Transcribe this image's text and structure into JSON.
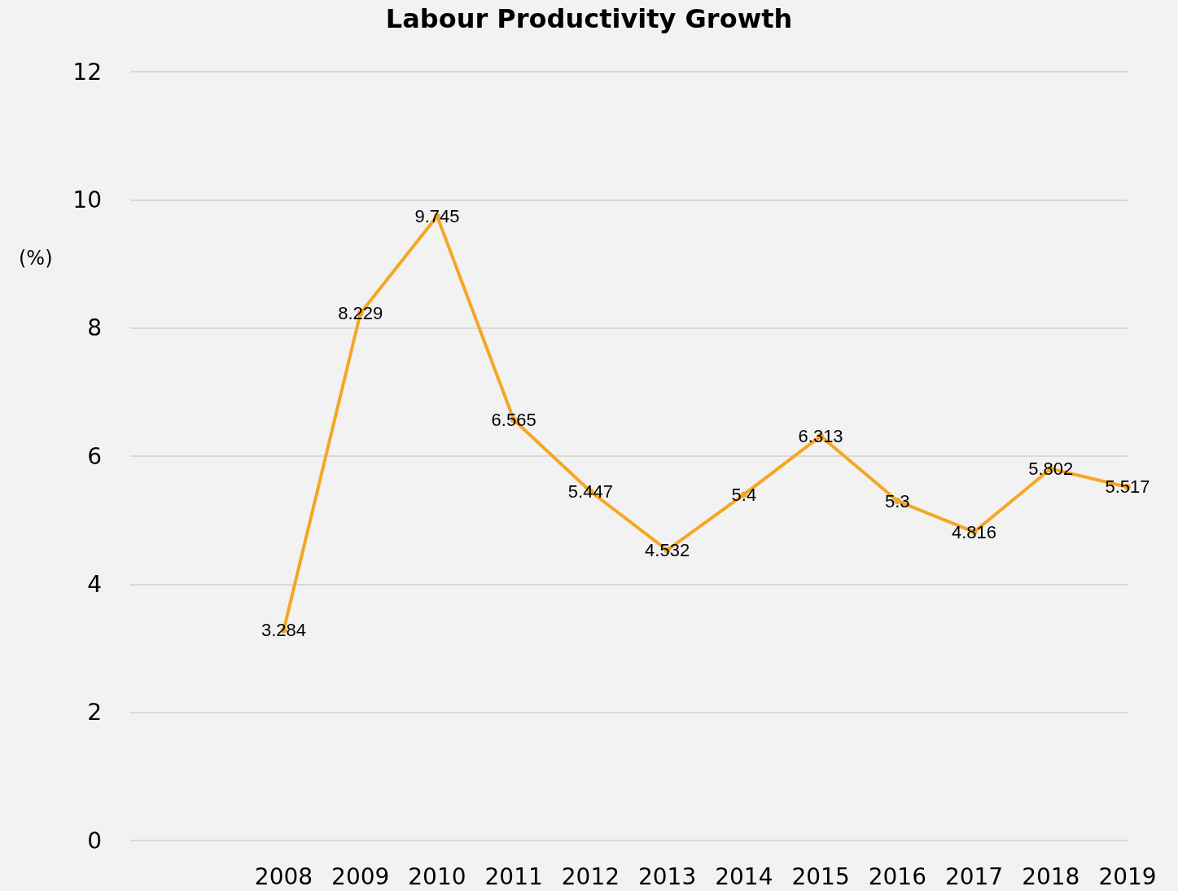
{
  "chart_data": {
    "type": "line",
    "title": "Labour Productivity Growth",
    "ylabel": "(%)",
    "categories": [
      null,
      null,
      "2008",
      "2009",
      "2010",
      "2011",
      "2012",
      "2013",
      "2014",
      "2015",
      "2016",
      "2017",
      "2018",
      "2019"
    ],
    "series": [
      {
        "color": "#f5a623",
        "values": [
          null,
          null,
          3.284,
          8.229,
          9.745,
          6.565,
          5.447,
          4.532,
          5.4,
          6.313,
          5.3,
          4.816,
          5.802,
          5.517
        ]
      }
    ],
    "ylim": [
      0,
      12
    ],
    "yticks": [
      0,
      2,
      4,
      6,
      8,
      10,
      12
    ],
    "grid": "y",
    "data_labels": true,
    "marker": "circle",
    "line_style": "solid"
  }
}
